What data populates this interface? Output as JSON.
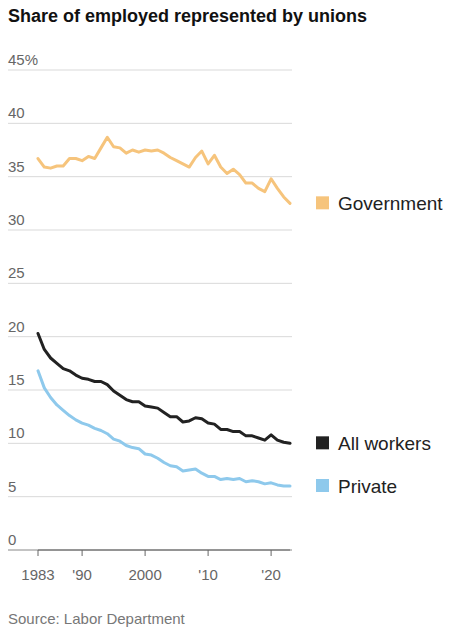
{
  "chart_data": {
    "type": "line",
    "title": "Share of employed represented by unions",
    "source": "Source: Labor Department",
    "x": [
      1983,
      1984,
      1985,
      1986,
      1987,
      1988,
      1989,
      1990,
      1991,
      1992,
      1993,
      1994,
      1995,
      1996,
      1997,
      1998,
      1999,
      2000,
      2001,
      2002,
      2003,
      2004,
      2005,
      2006,
      2007,
      2008,
      2009,
      2010,
      2011,
      2012,
      2013,
      2014,
      2015,
      2016,
      2017,
      2018,
      2019,
      2020,
      2021,
      2022,
      2023
    ],
    "series": [
      {
        "name": "Government",
        "color": "#f6c47c",
        "values": [
          36.7,
          35.9,
          35.8,
          36.0,
          36.0,
          36.7,
          36.7,
          36.5,
          36.9,
          36.7,
          37.7,
          38.7,
          37.8,
          37.7,
          37.2,
          37.5,
          37.3,
          37.5,
          37.4,
          37.5,
          37.2,
          36.8,
          36.5,
          36.2,
          35.9,
          36.8,
          37.4,
          36.2,
          37.0,
          35.9,
          35.3,
          35.7,
          35.2,
          34.4,
          34.4,
          33.9,
          33.6,
          34.8,
          33.9,
          33.1,
          32.5
        ]
      },
      {
        "name": "All workers",
        "color": "#222222",
        "values": [
          20.3,
          18.8,
          18.0,
          17.5,
          17.0,
          16.8,
          16.4,
          16.1,
          16.0,
          15.8,
          15.8,
          15.5,
          14.9,
          14.5,
          14.1,
          13.9,
          13.9,
          13.5,
          13.4,
          13.3,
          12.9,
          12.5,
          12.5,
          12.0,
          12.1,
          12.4,
          12.3,
          11.9,
          11.8,
          11.3,
          11.3,
          11.1,
          11.1,
          10.7,
          10.7,
          10.5,
          10.3,
          10.8,
          10.3,
          10.1,
          10.0
        ]
      },
      {
        "name": "Private",
        "color": "#8ec9ec",
        "values": [
          16.8,
          15.2,
          14.3,
          13.6,
          13.1,
          12.6,
          12.2,
          11.9,
          11.7,
          11.4,
          11.2,
          10.9,
          10.4,
          10.2,
          9.8,
          9.6,
          9.5,
          9.0,
          8.9,
          8.6,
          8.2,
          7.9,
          7.8,
          7.4,
          7.5,
          7.6,
          7.2,
          6.9,
          6.9,
          6.6,
          6.7,
          6.6,
          6.7,
          6.4,
          6.5,
          6.4,
          6.2,
          6.3,
          6.1,
          6.0,
          6.0
        ]
      }
    ],
    "xlim": [
      1983,
      2023
    ],
    "xticks": [
      {
        "value": 1983,
        "label": "1983"
      },
      {
        "value": 1990,
        "label": "'90"
      },
      {
        "value": 2000,
        "label": "2000"
      },
      {
        "value": 2010,
        "label": "'10"
      },
      {
        "value": 2020,
        "label": "'20"
      }
    ],
    "ylim": [
      0,
      45
    ],
    "yticks": [
      0,
      5,
      10,
      15,
      20,
      25,
      30,
      35,
      {
        "value": 45,
        "label": "45%"
      },
      40
    ],
    "grid": true,
    "legend": "right"
  }
}
